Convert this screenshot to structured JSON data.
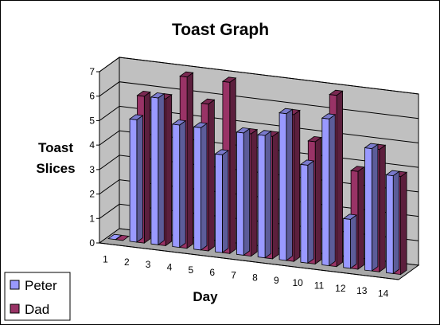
{
  "chart_data": {
    "type": "bar",
    "style": "3d-clustered-column",
    "title": "Toast Graph",
    "xlabel": "Day",
    "ylabel_lines": [
      "Toast",
      "Slices"
    ],
    "ylim": [
      0,
      7
    ],
    "yticks": [
      0,
      1,
      2,
      3,
      4,
      5,
      6,
      7
    ],
    "categories": [
      "1",
      "2",
      "3",
      "4",
      "5",
      "6",
      "7",
      "8",
      "9",
      "10",
      "11",
      "12",
      "13",
      "14"
    ],
    "series": [
      {
        "name": "Peter",
        "color": "#9999ff",
        "values": [
          0,
          5,
          6,
          5,
          5,
          4,
          5,
          5,
          6,
          4,
          6,
          2,
          5,
          4
        ]
      },
      {
        "name": "Dad",
        "color": "#993366",
        "values": [
          0,
          6,
          6,
          7,
          6,
          7,
          5,
          5,
          6,
          5,
          7,
          4,
          5,
          4
        ]
      }
    ],
    "grid": true,
    "legend": "bottom-left",
    "wall_color": "#c0c0c0"
  }
}
